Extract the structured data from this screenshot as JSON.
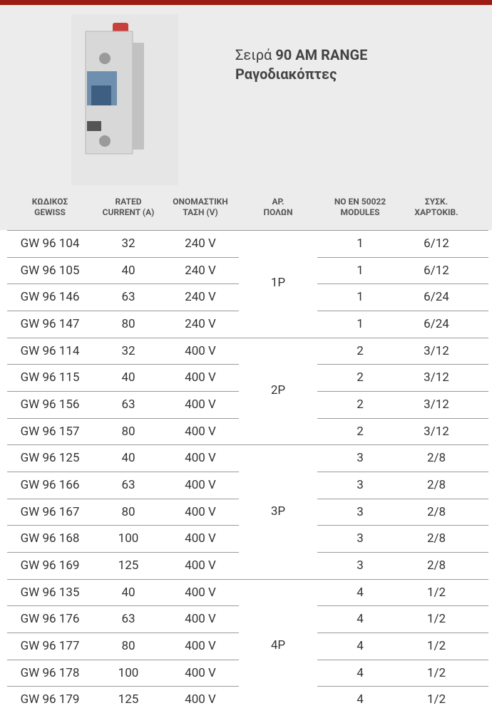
{
  "header": {
    "series_label": "Σειρά",
    "series_name": "90 AM RANGE",
    "subtitle": "Ραγοδιακόπτες"
  },
  "table": {
    "columns": [
      [
        "ΚΩΔΙΚΟΣ",
        "GEWISS"
      ],
      [
        "RATED",
        "CURRENT (A)"
      ],
      [
        "ΟΝΟΜΑΣΤΙΚΗ",
        "ΤΑΣΗ (V)"
      ],
      [
        "ΑΡ.",
        "ΠΟΛΩΝ"
      ],
      [
        "NO EN 50022",
        "MODULES"
      ],
      [
        "ΣΥΣΚ.",
        "ΧΑΡΤΟΚΙΒ."
      ]
    ],
    "groups": [
      {
        "poles": "1P",
        "rows": [
          [
            "GW 96 104",
            "32",
            "240 V",
            "1",
            "6/12"
          ],
          [
            "GW 96 105",
            "40",
            "240 V",
            "1",
            "6/12"
          ],
          [
            "GW 96 146",
            "63",
            "240 V",
            "1",
            "6/24"
          ],
          [
            "GW 96 147",
            "80",
            "240 V",
            "1",
            "6/24"
          ]
        ]
      },
      {
        "poles": "2P",
        "rows": [
          [
            "GW 96 114",
            "32",
            "400 V",
            "2",
            "3/12"
          ],
          [
            "GW 96 115",
            "40",
            "400 V",
            "2",
            "3/12"
          ],
          [
            "GW 96 156",
            "63",
            "400 V",
            "2",
            "3/12"
          ],
          [
            "GW 96 157",
            "80",
            "400 V",
            "2",
            "3/12"
          ]
        ]
      },
      {
        "poles": "3P",
        "rows": [
          [
            "GW 96 125",
            "40",
            "400 V",
            "3",
            "2/8"
          ],
          [
            "GW 96 166",
            "63",
            "400 V",
            "3",
            "2/8"
          ],
          [
            "GW 96 167",
            "80",
            "400 V",
            "3",
            "2/8"
          ],
          [
            "GW 96 168",
            "100",
            "400 V",
            "3",
            "2/8"
          ],
          [
            "GW 96 169",
            "125",
            "400 V",
            "3",
            "2/8"
          ]
        ]
      },
      {
        "poles": "4P",
        "rows": [
          [
            "GW 96 135",
            "40",
            "400 V",
            "4",
            "1/2"
          ],
          [
            "GW 96 176",
            "63",
            "400 V",
            "4",
            "1/2"
          ],
          [
            "GW 96 177",
            "80",
            "400 V",
            "4",
            "1/2"
          ],
          [
            "GW 96 178",
            "100",
            "400 V",
            "4",
            "1/2"
          ],
          [
            "GW 96 179",
            "125",
            "400 V",
            "4",
            "1/2"
          ]
        ]
      }
    ]
  }
}
